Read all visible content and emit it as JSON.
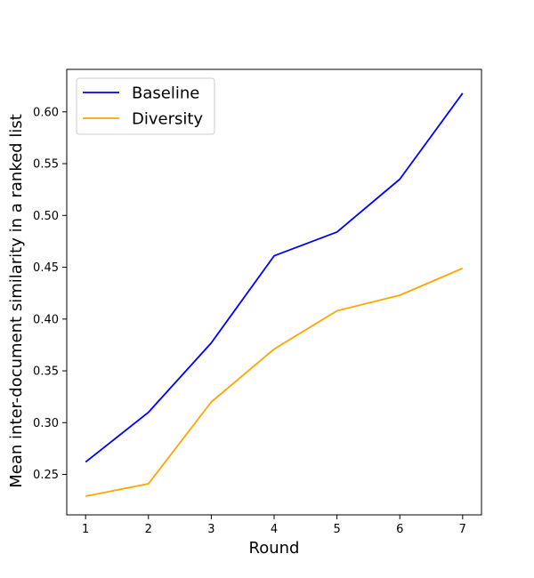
{
  "chart_data": {
    "type": "line",
    "title": "",
    "xlabel": "Round",
    "ylabel": "Mean inter-document similarity in a ranked list",
    "x": [
      1,
      2,
      3,
      4,
      5,
      6,
      7
    ],
    "xticks": [
      "1",
      "2",
      "3",
      "4",
      "5",
      "6",
      "7"
    ],
    "yticks": [
      "0.25",
      "0.30",
      "0.35",
      "0.40",
      "0.45",
      "0.50",
      "0.55",
      "0.60"
    ],
    "xlim": [
      0.7,
      7.3
    ],
    "ylim": [
      0.211,
      0.641
    ],
    "grid": false,
    "legend_position": "top-left",
    "series": [
      {
        "name": "Baseline",
        "color": "#0000ff",
        "values": [
          0.262,
          0.31,
          0.377,
          0.461,
          0.484,
          0.535,
          0.618
        ]
      },
      {
        "name": "Diversity",
        "color": "#ffa500",
        "values": [
          0.229,
          0.241,
          0.32,
          0.371,
          0.408,
          0.423,
          0.449
        ]
      }
    ]
  }
}
